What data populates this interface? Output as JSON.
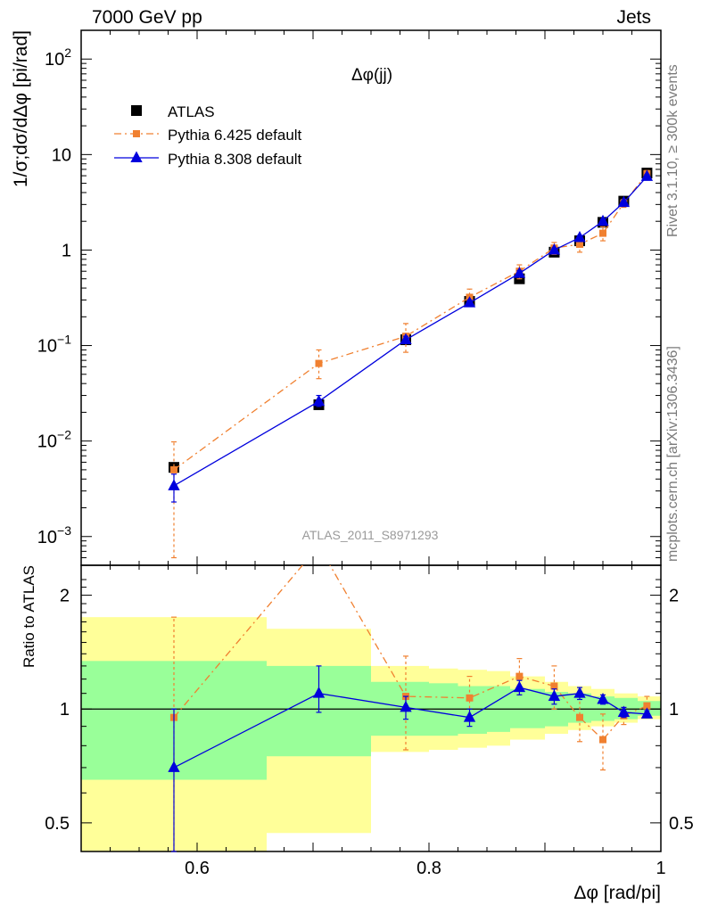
{
  "header": {
    "left": "7000 GeV pp",
    "right": "Jets"
  },
  "side_labels": {
    "rivet": "Rivet 3.1.10, ≥ 300k events",
    "mcplots": "mcplots.cern.ch [arXiv:1306.3436]"
  },
  "chart_data": [
    {
      "type": "line",
      "panel": "main",
      "title": "Δφ(jj)",
      "ylabel": "1/σ;dσ/dΔφ [pi/rad]",
      "xlabel": "Δφ [rad/pi]",
      "yscale": "log",
      "xlim": [
        0.5,
        1.0
      ],
      "ylim": [
        0.0005,
        200
      ],
      "legend_position": "top-left",
      "watermark": "ATLAS_2011_S8971293",
      "ytick_labels": [
        {
          "value": 0.001,
          "base": "10",
          "exp": "−3"
        },
        {
          "value": 0.01,
          "base": "10",
          "exp": "−2"
        },
        {
          "value": 0.1,
          "base": "10",
          "exp": "−1"
        },
        {
          "value": 1,
          "base": "1",
          "exp": ""
        },
        {
          "value": 10,
          "base": "10",
          "exp": ""
        },
        {
          "value": 100,
          "base": "10",
          "exp": "2"
        }
      ],
      "series": [
        {
          "name": "ATLAS",
          "color": "#000000",
          "marker": "square",
          "x": [
            0.58,
            0.705,
            0.78,
            0.835,
            0.878,
            0.908,
            0.93,
            0.95,
            0.968,
            0.988
          ],
          "y": [
            0.0053,
            0.024,
            0.115,
            0.29,
            0.5,
            0.95,
            1.25,
            1.95,
            3.25,
            6.4
          ]
        },
        {
          "name": "Pythia 6.425 default",
          "color": "#f08030",
          "marker": "square",
          "line": "dashdot",
          "x": [
            0.58,
            0.705,
            0.78,
            0.835,
            0.878,
            0.908,
            0.93,
            0.95,
            0.968,
            0.988
          ],
          "y": [
            0.005,
            0.065,
            0.125,
            0.32,
            0.6,
            1.05,
            1.15,
            1.5,
            3.1,
            6.3
          ],
          "yerr_low": [
            0.0044,
            0.02,
            0.04,
            0.06,
            0.1,
            0.15,
            0.2,
            0.25,
            0.3,
            0.5
          ],
          "yerr_high": [
            0.0048,
            0.025,
            0.045,
            0.07,
            0.1,
            0.15,
            0.2,
            0.25,
            0.3,
            0.5
          ]
        },
        {
          "name": "Pythia 8.308 default",
          "color": "#0000dd",
          "marker": "triangle",
          "line": "solid",
          "x": [
            0.58,
            0.705,
            0.78,
            0.835,
            0.878,
            0.908,
            0.93,
            0.95,
            0.968,
            0.988
          ],
          "y": [
            0.0034,
            0.026,
            0.115,
            0.28,
            0.57,
            1.0,
            1.35,
            2.0,
            3.15,
            5.9
          ],
          "yerr_low": [
            0.0011,
            0.003,
            0.01,
            0.02,
            0.04,
            0.05,
            0.07,
            0.1,
            0.15,
            0.3
          ],
          "yerr_high": [
            0.0011,
            0.004,
            0.01,
            0.02,
            0.04,
            0.05,
            0.07,
            0.1,
            0.15,
            0.3
          ]
        }
      ]
    },
    {
      "type": "line",
      "panel": "ratio",
      "ylabel": "Ratio to ATLAS",
      "xlabel": "Δφ [rad/pi]",
      "yscale": "log",
      "xlim": [
        0.5,
        1.0
      ],
      "ylim": [
        0.42,
        2.4
      ],
      "xtick_labels": [
        0.6,
        0.8,
        1
      ],
      "ytick_labels": [
        0.5,
        1,
        2
      ],
      "bands": [
        {
          "name": "outer",
          "color": "#ffff99",
          "x0": [
            0.5,
            0.66,
            0.75,
            0.8,
            0.825,
            0.85,
            0.87,
            0.9,
            0.92,
            0.94,
            0.96,
            0.98
          ],
          "x1": [
            0.66,
            0.75,
            0.8,
            0.825,
            0.85,
            0.87,
            0.9,
            0.92,
            0.94,
            0.96,
            0.98,
            1.0
          ],
          "lo": [
            0.3,
            0.47,
            0.77,
            0.78,
            0.79,
            0.8,
            0.83,
            0.86,
            0.88,
            0.9,
            0.92,
            0.94
          ],
          "hi": [
            1.75,
            1.63,
            1.3,
            1.28,
            1.27,
            1.26,
            1.22,
            1.18,
            1.15,
            1.13,
            1.1,
            1.08
          ]
        },
        {
          "name": "inner",
          "color": "#99ff99",
          "x0": [
            0.5,
            0.66,
            0.75,
            0.8,
            0.825,
            0.85,
            0.87,
            0.9,
            0.92,
            0.94,
            0.96,
            0.98
          ],
          "x1": [
            0.66,
            0.75,
            0.8,
            0.825,
            0.85,
            0.87,
            0.9,
            0.92,
            0.94,
            0.96,
            0.98,
            1.0
          ],
          "lo": [
            0.65,
            0.75,
            0.85,
            0.85,
            0.86,
            0.87,
            0.89,
            0.9,
            0.92,
            0.93,
            0.94,
            0.96
          ],
          "hi": [
            1.34,
            1.3,
            1.18,
            1.17,
            1.15,
            1.15,
            1.13,
            1.11,
            1.1,
            1.08,
            1.07,
            1.05
          ]
        }
      ],
      "series": [
        {
          "name": "Pythia 6.425 default",
          "color": "#f08030",
          "x": [
            0.58,
            0.705,
            0.78,
            0.835,
            0.878,
            0.908,
            0.93,
            0.95,
            0.968,
            0.988
          ],
          "y": [
            0.95,
            2.7,
            1.08,
            1.07,
            1.22,
            1.15,
            0.95,
            0.83,
            0.96,
            1.02
          ],
          "yerr_low": [
            0.95,
            0.0,
            0.3,
            0.13,
            0.13,
            0.15,
            0.13,
            0.14,
            0.05,
            0.06
          ],
          "yerr_high": [
            0.8,
            0.0,
            0.3,
            0.15,
            0.14,
            0.15,
            0.13,
            0.14,
            0.05,
            0.06
          ]
        },
        {
          "name": "Pythia 8.308 default",
          "color": "#0000dd",
          "x": [
            0.58,
            0.705,
            0.78,
            0.835,
            0.878,
            0.908,
            0.93,
            0.95,
            0.968,
            0.988
          ],
          "y": [
            0.7,
            1.1,
            1.01,
            0.95,
            1.14,
            1.08,
            1.1,
            1.06,
            0.98,
            0.97
          ],
          "yerr_low": [
            0.3,
            0.12,
            0.07,
            0.05,
            0.05,
            0.05,
            0.04,
            0.03,
            0.03,
            0.02
          ],
          "yerr_high": [
            0.3,
            0.2,
            0.07,
            0.05,
            0.05,
            0.05,
            0.04,
            0.03,
            0.03,
            0.02
          ]
        }
      ]
    }
  ]
}
